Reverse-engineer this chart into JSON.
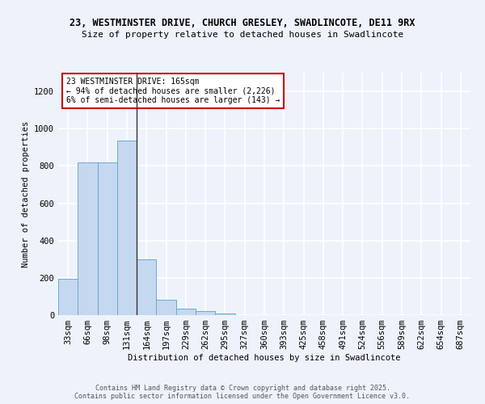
{
  "title1": "23, WESTMINSTER DRIVE, CHURCH GRESLEY, SWADLINCOTE, DE11 9RX",
  "title2": "Size of property relative to detached houses in Swadlincote",
  "xlabel": "Distribution of detached houses by size in Swadlincote",
  "ylabel": "Number of detached properties",
  "categories": [
    "33sqm",
    "66sqm",
    "98sqm",
    "131sqm",
    "164sqm",
    "197sqm",
    "229sqm",
    "262sqm",
    "295sqm",
    "327sqm",
    "360sqm",
    "393sqm",
    "425sqm",
    "458sqm",
    "491sqm",
    "524sqm",
    "556sqm",
    "589sqm",
    "622sqm",
    "654sqm",
    "687sqm"
  ],
  "values": [
    197,
    820,
    820,
    935,
    300,
    82,
    35,
    20,
    10,
    0,
    0,
    0,
    0,
    0,
    0,
    0,
    0,
    0,
    0,
    0,
    0
  ],
  "bar_color": "#c5d8ef",
  "bar_edge_color": "#6aaad4",
  "annotation_line": "23 WESTMINSTER DRIVE: 165sqm",
  "annotation_line2": "← 94% of detached houses are smaller (2,226)",
  "annotation_line3": "6% of semi-detached houses are larger (143) →",
  "annotation_box_color": "#ffffff",
  "annotation_box_edge_color": "#cc0000",
  "vline_x": 3.5,
  "ylim": [
    0,
    1300
  ],
  "yticks": [
    0,
    200,
    400,
    600,
    800,
    1000,
    1200
  ],
  "background_color": "#eef2fb",
  "grid_color": "#ffffff",
  "footer1": "Contains HM Land Registry data © Crown copyright and database right 2025.",
  "footer2": "Contains public sector information licensed under the Open Government Licence v3.0.",
  "title1_fontsize": 8.5,
  "title2_fontsize": 8.0,
  "axis_fontsize": 7.5,
  "tick_fontsize": 7.5,
  "footer_fontsize": 6.0
}
